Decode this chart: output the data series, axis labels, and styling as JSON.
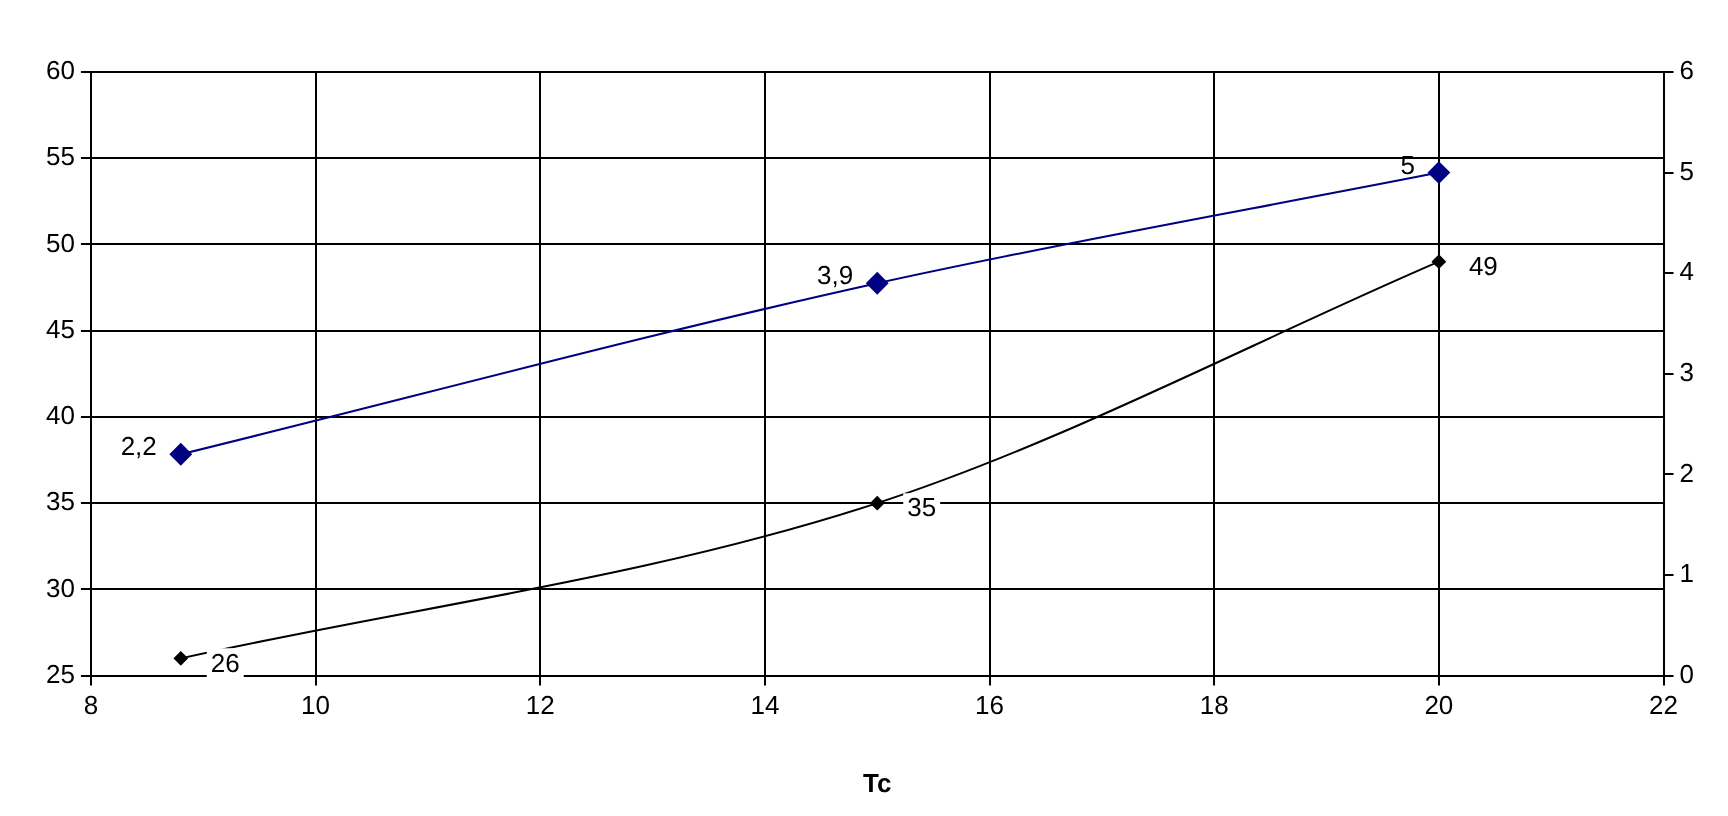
{
  "chart_data": {
    "type": "line",
    "xlabel": "Tc",
    "x": [
      8.8,
      15,
      20
    ],
    "series": [
      {
        "color": "#000000",
        "values": [
          26,
          35,
          49
        ],
        "value_labels": [
          "26",
          "35",
          "49"
        ]
      },
      {
        "color": "#000080",
        "values": [
          2.2,
          3.9,
          5
        ],
        "axis": "y2",
        "value_labels": [
          "2,2",
          "3,9",
          "5"
        ]
      }
    ],
    "xlim": [
      8,
      22
    ],
    "xticks": [
      8,
      10,
      12,
      14,
      16,
      18,
      20,
      22
    ],
    "ylim": [
      25,
      60
    ],
    "yticks": [
      25,
      30,
      35,
      40,
      45,
      50,
      55,
      60
    ],
    "y2lim": [
      0,
      6
    ],
    "y2ticks": [
      0,
      1,
      2,
      3,
      4,
      5,
      6
    ],
    "grid": true,
    "legend": false,
    "marker": "diamond",
    "line_style": "solid"
  }
}
